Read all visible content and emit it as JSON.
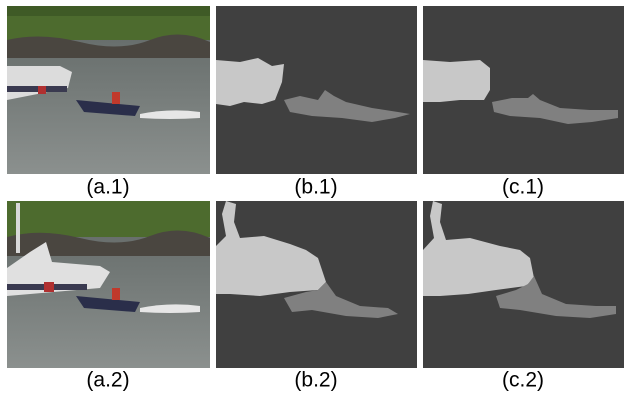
{
  "captions": [
    "(a.1)",
    "(b.1)",
    "(c.1)",
    "(a.2)",
    "(b.2)",
    "(c.2)"
  ]
}
